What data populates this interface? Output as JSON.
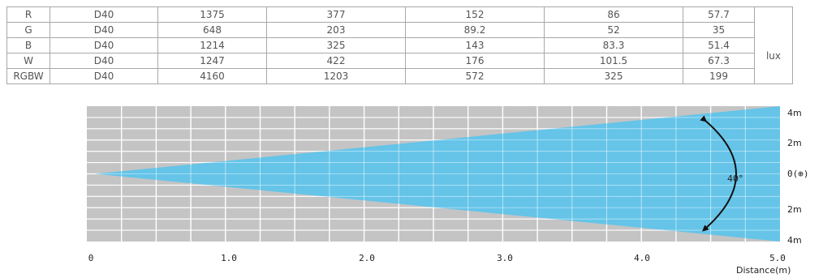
{
  "table": {
    "unit_label": "lux",
    "rows": [
      {
        "color": "R",
        "model": "D40",
        "values": [
          "1375",
          "377",
          "152",
          "86",
          "57.7"
        ]
      },
      {
        "color": "G",
        "model": "D40",
        "values": [
          "648",
          "203",
          "89.2",
          "52",
          "35"
        ]
      },
      {
        "color": "B",
        "model": "D40",
        "values": [
          "1214",
          "325",
          "143",
          "83.3",
          "51.4"
        ]
      },
      {
        "color": "W",
        "model": "D40",
        "values": [
          "1247",
          "422",
          "176",
          "101.5",
          "67.3"
        ]
      },
      {
        "color": "RGBW",
        "model": "D40",
        "values": [
          "4160",
          "1203",
          "572",
          "325",
          "199"
        ]
      }
    ]
  },
  "beam_diagram": {
    "beam_angle": "40°",
    "x_ticks": [
      "0",
      "1.0",
      "2.0",
      "3.0",
      "4.0",
      "5.0"
    ],
    "x_axis_label": "Distance(m)",
    "right_labels": [
      "4m",
      "2m",
      "0(⊕)",
      "2m",
      "4m"
    ],
    "colors": {
      "beam": "#5cc3ea",
      "background": "#c4c4c4",
      "grid": "#ffffff"
    }
  }
}
